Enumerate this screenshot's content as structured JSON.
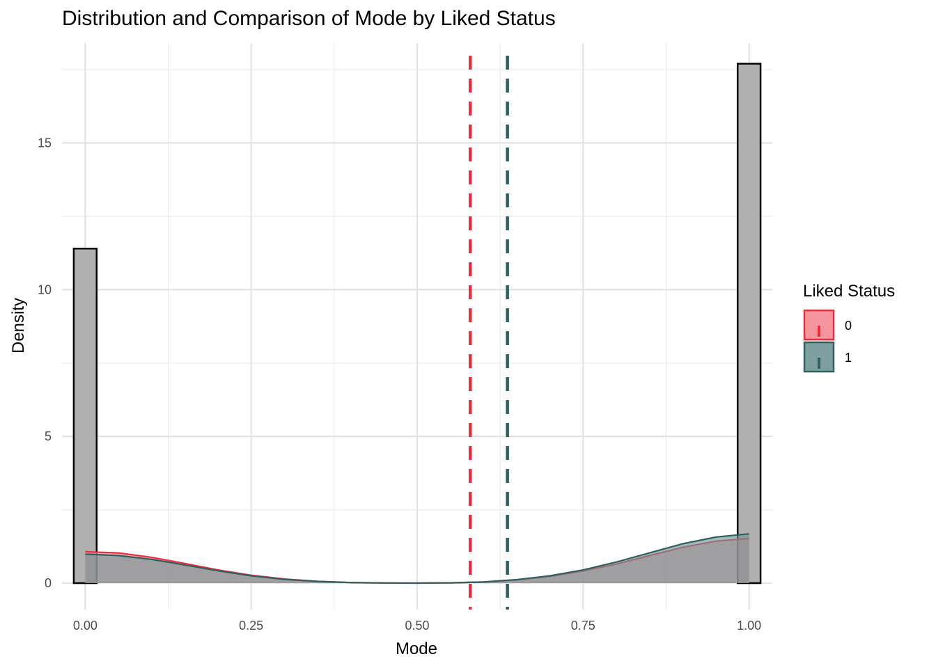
{
  "chart_data": {
    "type": "histogram+density",
    "title": "Distribution and Comparison of Mode by Liked Status",
    "xlabel": "Mode",
    "ylabel": "Density",
    "xlim": [
      -0.035,
      1.035
    ],
    "ylim": [
      -0.9,
      18.4
    ],
    "x_ticks": [
      0.0,
      0.25,
      0.5,
      0.75,
      1.0
    ],
    "x_tick_labels": [
      "0.00",
      "0.25",
      "0.50",
      "0.75",
      "1.00"
    ],
    "y_ticks": [
      0,
      5,
      10,
      15
    ],
    "y_tick_labels": [
      "0",
      "5",
      "10",
      "15"
    ],
    "grid": true,
    "histogram": {
      "bin_width": 0.0345,
      "bars": [
        {
          "x": 0.0,
          "density": 11.4
        },
        {
          "x": 1.0,
          "density": 17.7
        }
      ],
      "fill": "#b0b0b0",
      "stroke": "#000000"
    },
    "density_x": [
      0.0,
      0.05,
      0.1,
      0.15,
      0.2,
      0.25,
      0.3,
      0.35,
      0.4,
      0.45,
      0.5,
      0.55,
      0.6,
      0.65,
      0.7,
      0.75,
      0.8,
      0.85,
      0.9,
      0.95,
      1.0
    ],
    "series": [
      {
        "name": "0",
        "color": "#ee2c3c",
        "fill": "#f48a92",
        "density": [
          1.07,
          1.03,
          0.88,
          0.67,
          0.45,
          0.27,
          0.14,
          0.06,
          0.02,
          0.005,
          0.0,
          0.01,
          0.04,
          0.11,
          0.23,
          0.41,
          0.65,
          0.94,
          1.22,
          1.43,
          1.52
        ],
        "mean": 0.58
      },
      {
        "name": "1",
        "color": "#2f5f5f",
        "fill": "#6f9595",
        "density": [
          0.99,
          0.94,
          0.81,
          0.62,
          0.42,
          0.25,
          0.13,
          0.06,
          0.02,
          0.005,
          0.0,
          0.01,
          0.04,
          0.12,
          0.25,
          0.45,
          0.72,
          1.03,
          1.34,
          1.57,
          1.68
        ],
        "mean": 0.636
      }
    ],
    "legend": {
      "title": "Liked Status",
      "placement": "right",
      "entries": [
        "0",
        "1"
      ]
    }
  }
}
